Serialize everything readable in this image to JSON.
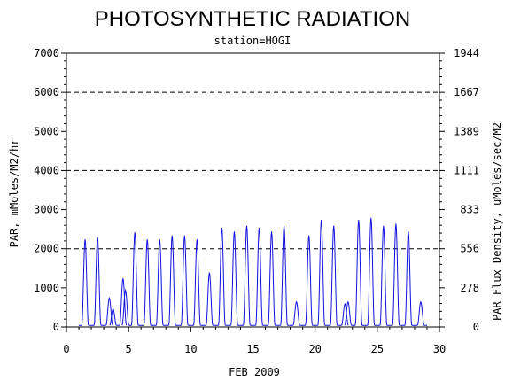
{
  "chart_data": {
    "type": "line",
    "title": "PHOTOSYNTHETIC RADIATION",
    "subtitle": "station=HOGI",
    "xlabel": "FEB 2009",
    "ylabel": "PAR, mMoles/M2/hr",
    "y2label": "PAR Flux Density, uMoles/sec/M2",
    "xlim": [
      0,
      30
    ],
    "ylim": [
      0,
      7000
    ],
    "xticks": [
      "0",
      "5",
      "10",
      "15",
      "20",
      "25",
      "30"
    ],
    "yticks": [
      "0",
      "1000",
      "2000",
      "3000",
      "4000",
      "5000",
      "6000",
      "7000"
    ],
    "y2ticks": [
      "0",
      "278",
      "556",
      "833",
      "1111",
      "1389",
      "1667",
      "1944"
    ],
    "gridlines_y": [
      2000,
      4000,
      6000
    ],
    "series_color": "#1010e0",
    "series": [
      {
        "values": [
          [
            1.5,
            2200
          ],
          [
            2.5,
            2250
          ],
          [
            3.45,
            700
          ],
          [
            3.75,
            420
          ],
          [
            4.55,
            1200
          ],
          [
            4.75,
            900
          ],
          [
            5.5,
            2380
          ],
          [
            6.5,
            2200
          ],
          [
            7.5,
            2200
          ],
          [
            8.5,
            2300
          ],
          [
            9.5,
            2300
          ],
          [
            10.5,
            2200
          ],
          [
            11.5,
            1350
          ],
          [
            12.5,
            2500
          ],
          [
            13.5,
            2400
          ],
          [
            14.5,
            2550
          ],
          [
            15.5,
            2500
          ],
          [
            16.5,
            2400
          ],
          [
            17.5,
            2550
          ],
          [
            18.5,
            600
          ],
          [
            19.5,
            2300
          ],
          [
            20.5,
            2700
          ],
          [
            21.5,
            2550
          ],
          [
            22.4,
            550
          ],
          [
            22.65,
            600
          ],
          [
            23.5,
            2700
          ],
          [
            24.5,
            2750
          ],
          [
            25.5,
            2550
          ],
          [
            26.5,
            2600
          ],
          [
            27.5,
            2400
          ],
          [
            28.5,
            600
          ]
        ]
      }
    ]
  }
}
